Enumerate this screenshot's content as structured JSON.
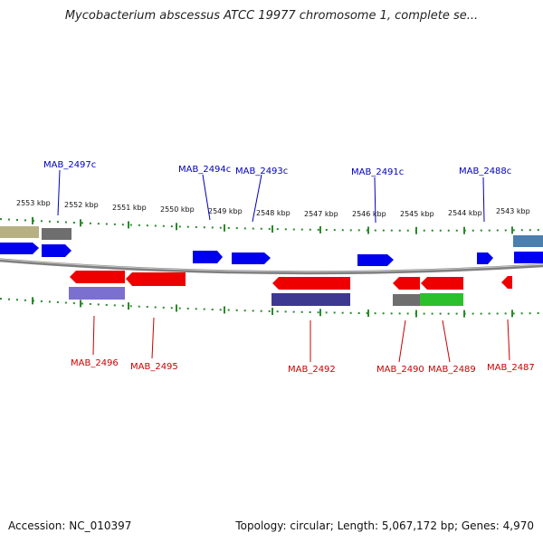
{
  "title": "Mycobacterium abscessus ATCC 19977 chromosome 1, complete se...",
  "footer": {
    "accession": "Accession: NC_010397",
    "summary": "Topology: circular; Length: 5,067,172 bp; Genes: 4,970"
  },
  "colors": {
    "forward_cds": "#0000ee",
    "reverse_cds": "#ee0000",
    "backbone": "#808080",
    "tick": "#2a8a2a",
    "forward_label": "#0000bb",
    "reverse_label": "#cc0000",
    "rna_olive": "#b7b082",
    "grey_feature": "#6e6e6e",
    "purple_feature": "#7b6fd0",
    "navy_feature": "#3d3890",
    "green_feature": "#2cc02c",
    "steelblue_feature": "#4a7fb0"
  },
  "kbp_ticks": [
    "2553 kbp",
    "2552 kbp",
    "2551 kbp",
    "2550 kbp",
    "2549 kbp",
    "2548 kbp",
    "2547 kbp",
    "2546 kbp",
    "2545 kbp",
    "2544 kbp",
    "2543 kbp"
  ],
  "forward_genes": [
    "MAB_2497c",
    "MAB_2494c",
    "MAB_2493c",
    "MAB_2491c",
    "MAB_2488c"
  ],
  "reverse_genes": [
    "MAB_2496",
    "MAB_2495",
    "MAB_2492",
    "MAB_2490",
    "MAB_2489",
    "MAB_2487"
  ]
}
